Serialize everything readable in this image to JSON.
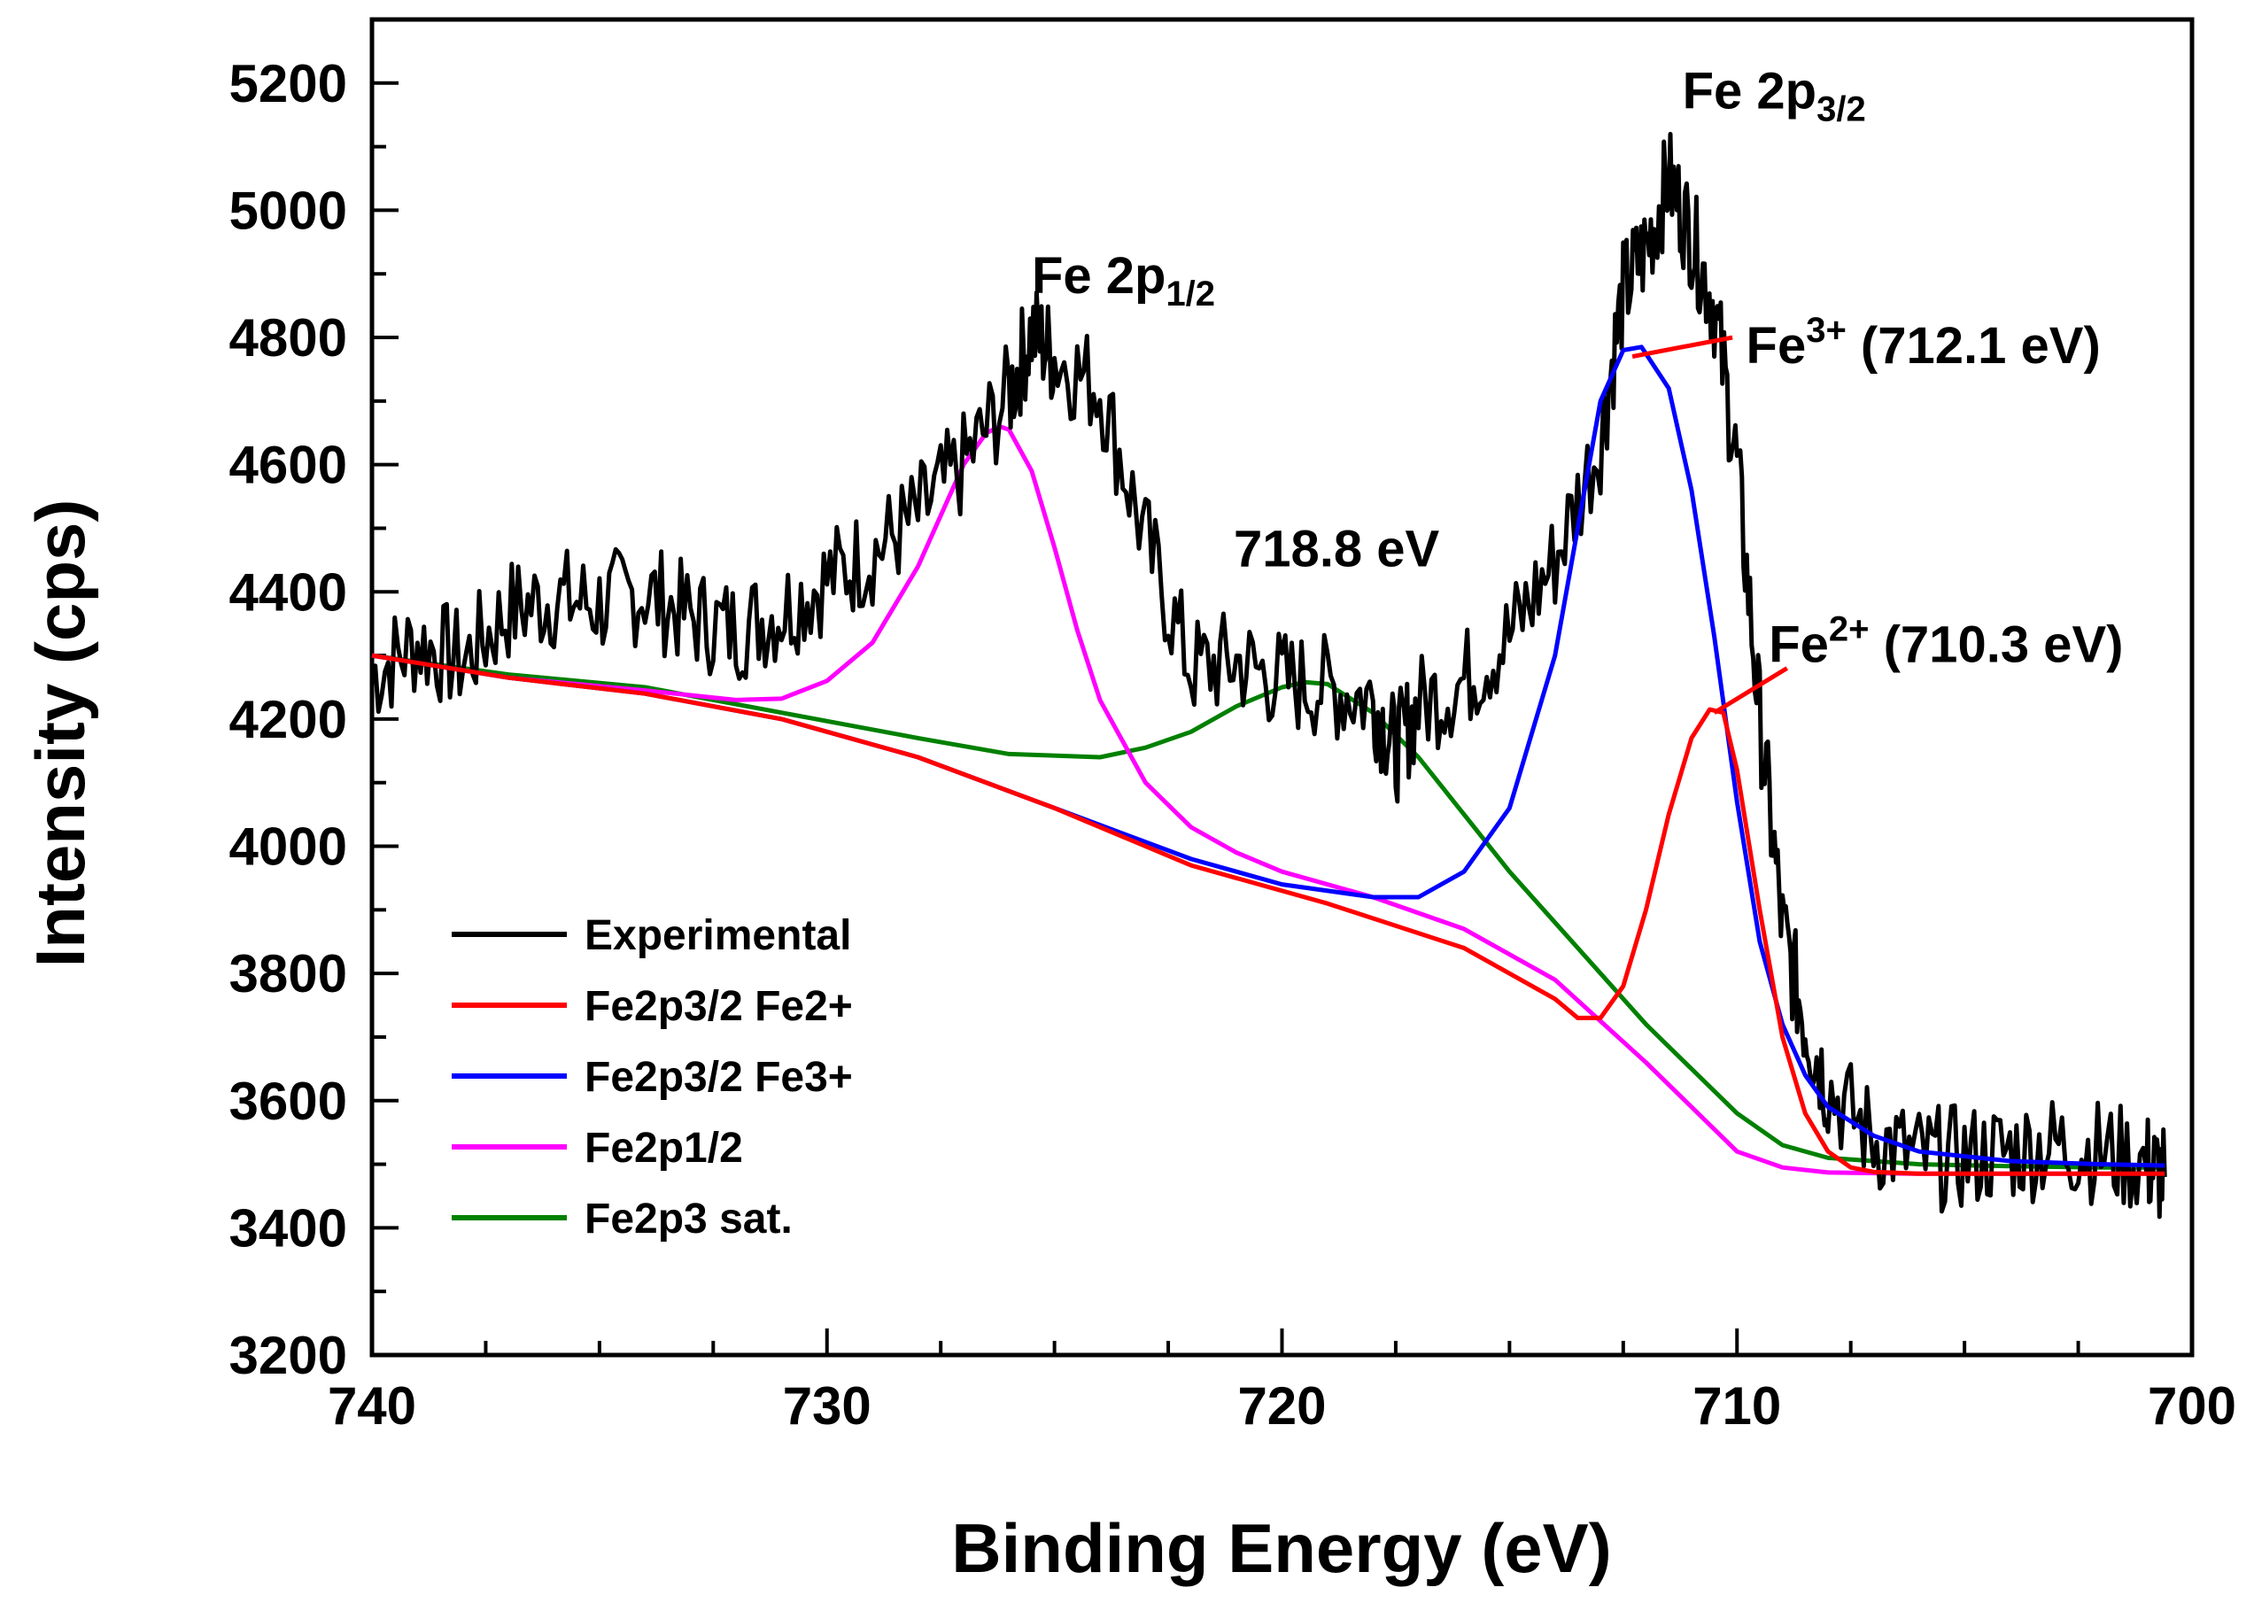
{
  "chart_data": {
    "type": "line",
    "title": "",
    "xlabel": "Binding Energy (eV)",
    "ylabel": "Intensity (cps)",
    "xlim": [
      740,
      700
    ],
    "ylim": [
      3200,
      5300
    ],
    "x_ticks": [
      "740",
      "730",
      "720",
      "710",
      "700"
    ],
    "y_ticks": [
      "3200",
      "3400",
      "3600",
      "3800",
      "4000",
      "4200",
      "4400",
      "4600",
      "4800",
      "5000",
      "5200"
    ],
    "legend_position": "bottom-left",
    "series": [
      {
        "name": "Experimental",
        "color": "#000000",
        "x": [
          740,
          739,
          738,
          737,
          736,
          735,
          734,
          733,
          732,
          731,
          730,
          729,
          728,
          727,
          726,
          725.5,
          725,
          724,
          723,
          722,
          721,
          720,
          719,
          718,
          717.5,
          717,
          716,
          715,
          714,
          713,
          712.5,
          712,
          711.5,
          711,
          710.5,
          710,
          709.5,
          709,
          708.5,
          708,
          707,
          706,
          705,
          704,
          703,
          702,
          701,
          700.6
        ],
        "y": [
          4270,
          4320,
          4290,
          4370,
          4390,
          4380,
          4400,
          4360,
          4340,
          4370,
          4420,
          4460,
          4520,
          4600,
          4710,
          4810,
          4770,
          4720,
          4480,
          4280,
          4290,
          4260,
          4250,
          4230,
          4150,
          4220,
          4260,
          4330,
          4450,
          4640,
          4870,
          4940,
          5050,
          4960,
          4850,
          4600,
          4200,
          3870,
          3720,
          3620,
          3540,
          3510,
          3510,
          3520,
          3530,
          3520,
          3500,
          3480
        ]
      },
      {
        "name": "Fe2p3/2 Fe2+",
        "color": "#ff0000",
        "x": [
          740,
          737,
          734,
          731,
          728,
          725,
          722,
          719,
          716,
          714,
          713.5,
          713,
          712.5,
          712,
          711.5,
          711,
          710.6,
          710.3,
          710,
          709.5,
          709,
          708.5,
          708,
          707.5,
          707,
          706,
          704,
          702,
          700.6
        ],
        "y": [
          4300,
          4265,
          4240,
          4200,
          4140,
          4060,
          3970,
          3910,
          3840,
          3760,
          3730,
          3730,
          3780,
          3900,
          4050,
          4170,
          4215,
          4210,
          4120,
          3900,
          3700,
          3580,
          3520,
          3495,
          3488,
          3485,
          3485,
          3485,
          3485
        ]
      },
      {
        "name": "Fe2p3/2 Fe3+",
        "color": "#0000ff",
        "x": [
          740,
          737,
          734,
          731,
          728,
          725,
          722,
          720,
          718,
          717,
          716,
          715,
          714,
          713.5,
          713,
          712.5,
          712.1,
          711.5,
          711,
          710.5,
          710,
          709.5,
          709,
          708.5,
          708,
          707,
          706,
          704,
          702,
          700.6
        ],
        "y": [
          4300,
          4265,
          4240,
          4200,
          4140,
          4060,
          3980,
          3940,
          3920,
          3920,
          3960,
          4060,
          4300,
          4500,
          4700,
          4780,
          4785,
          4720,
          4560,
          4330,
          4070,
          3850,
          3720,
          3640,
          3590,
          3545,
          3520,
          3505,
          3500,
          3498
        ]
      },
      {
        "name": "Fe2p1/2",
        "color": "#ff00ff",
        "x": [
          740,
          737,
          734,
          732,
          731,
          730,
          729,
          728,
          727.5,
          727,
          726.5,
          726.2,
          726,
          725.5,
          725,
          724.5,
          724,
          723,
          722,
          721,
          720,
          718,
          716,
          714,
          712,
          710,
          709,
          708,
          706,
          704,
          702,
          700.6
        ],
        "y": [
          4300,
          4265,
          4245,
          4230,
          4232,
          4260,
          4320,
          4440,
          4520,
          4600,
          4650,
          4660,
          4655,
          4590,
          4470,
          4340,
          4230,
          4100,
          4030,
          3990,
          3960,
          3920,
          3870,
          3790,
          3660,
          3520,
          3495,
          3487,
          3485,
          3485,
          3485,
          3485
        ]
      },
      {
        "name": "Fe2p3 sat.",
        "color": "#008000",
        "x": [
          740,
          737,
          734,
          731,
          728,
          726,
          724,
          723,
          722,
          721,
          720,
          719.5,
          719,
          718,
          717,
          716,
          715,
          714,
          713,
          712,
          711,
          710,
          709,
          708,
          706,
          704,
          702,
          700.6
        ],
        "y": [
          4300,
          4270,
          4250,
          4210,
          4170,
          4145,
          4140,
          4155,
          4180,
          4220,
          4250,
          4258,
          4255,
          4210,
          4140,
          4050,
          3960,
          3880,
          3800,
          3720,
          3650,
          3580,
          3530,
          3510,
          3500,
          3497,
          3495,
          3495
        ]
      }
    ],
    "annotations": {
      "fe2p12": {
        "main": "Fe 2p",
        "sub": "1/2",
        "x": 725.5,
        "y": 4870
      },
      "fe2p32": {
        "main": "Fe 2p",
        "sub": "3/2",
        "x": 711.2,
        "y": 5160
      },
      "sat": {
        "text": "718.8 eV",
        "x": 718.8,
        "y": 4440
      },
      "fe3": {
        "main": "Fe",
        "sup": "3+",
        "rest": " (712.1 eV)",
        "x": 709.8,
        "y": 4760,
        "line_from": [
          712.3,
          4770
        ],
        "line_to": [
          710.1,
          4800
        ]
      },
      "fe2": {
        "main": "Fe",
        "sup": "2+",
        "rest": " (710.3 eV)",
        "x": 709.3,
        "y": 4290,
        "line_from": [
          710.5,
          4210
        ],
        "line_to": [
          708.9,
          4280
        ]
      }
    }
  }
}
